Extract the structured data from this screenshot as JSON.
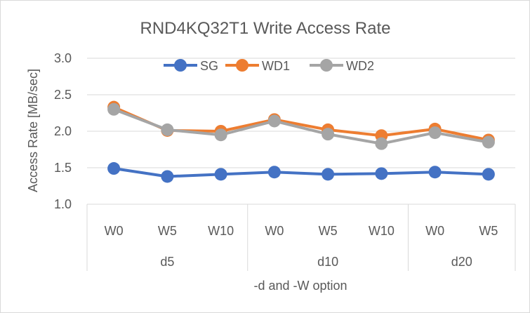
{
  "chart_data": {
    "type": "line",
    "title": "RND4KQ32T1 Write Access Rate",
    "xlabel": "-d and -W option",
    "ylabel": "Access Rate [MB/sec]",
    "ylim": [
      1.0,
      3.0
    ],
    "yticks": [
      "1.0",
      "1.5",
      "2.0",
      "2.5",
      "3.0"
    ],
    "grid": true,
    "legend_position": "top",
    "categories": [
      "W0",
      "W5",
      "W10",
      "W0",
      "W5",
      "W10",
      "W0",
      "W5"
    ],
    "groups": [
      {
        "label": "d5",
        "count": 3
      },
      {
        "label": "d10",
        "count": 3
      },
      {
        "label": "d20",
        "count": 2
      }
    ],
    "series": [
      {
        "name": "SG",
        "color": "#4472c4",
        "values": [
          1.49,
          1.38,
          1.41,
          1.44,
          1.41,
          1.42,
          1.44,
          1.41
        ]
      },
      {
        "name": "WD1",
        "color": "#ed7d31",
        "values": [
          2.33,
          2.01,
          2.0,
          2.16,
          2.02,
          1.94,
          2.03,
          1.88
        ]
      },
      {
        "name": "WD2",
        "color": "#a5a5a5",
        "values": [
          2.3,
          2.02,
          1.95,
          2.14,
          1.96,
          1.83,
          1.98,
          1.85
        ]
      }
    ]
  }
}
